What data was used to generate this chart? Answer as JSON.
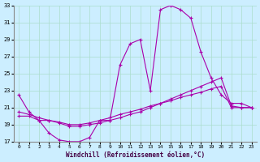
{
  "xlabel": "Windchill (Refroidissement éolien,°C)",
  "ylabel": "",
  "background_color": "#cceeff",
  "grid_color": "#aaddcc",
  "line_color": "#aa00aa",
  "xlim": [
    0,
    23
  ],
  "ylim": [
    17,
    33
  ],
  "yticks": [
    17,
    19,
    21,
    23,
    25,
    27,
    29,
    31,
    33
  ],
  "xticks": [
    0,
    1,
    2,
    3,
    4,
    5,
    6,
    7,
    8,
    9,
    10,
    11,
    12,
    13,
    14,
    15,
    16,
    17,
    18,
    19,
    20,
    21,
    22,
    23
  ],
  "line1_x": [
    0,
    1,
    2,
    3,
    4,
    5,
    6,
    7,
    8,
    9,
    10,
    11,
    12,
    13,
    14,
    15,
    16,
    17,
    18,
    19,
    20,
    21,
    22,
    23
  ],
  "line1_y": [
    22.5,
    20.5,
    19.5,
    18.0,
    17.2,
    17.0,
    17.0,
    17.5,
    19.5,
    19.5,
    26.0,
    28.5,
    29.0,
    23.0,
    32.5,
    33.0,
    32.5,
    31.5,
    27.5,
    24.5,
    22.5,
    21.5,
    21.5,
    21.0
  ],
  "line2_x": [
    0,
    1,
    2,
    3,
    4,
    5,
    6,
    7,
    8,
    9,
    10,
    11,
    12,
    13,
    14,
    15,
    16,
    17,
    18,
    19,
    20,
    21,
    22,
    23
  ],
  "line2_y": [
    20.0,
    20.0,
    19.5,
    19.5,
    19.3,
    19.0,
    19.0,
    19.2,
    19.5,
    19.8,
    20.2,
    20.5,
    20.8,
    21.2,
    21.5,
    21.8,
    22.2,
    22.5,
    22.8,
    23.2,
    23.5,
    21.0,
    21.0,
    21.0
  ],
  "line3_x": [
    0,
    1,
    2,
    3,
    4,
    5,
    6,
    7,
    8,
    9,
    10,
    11,
    12,
    13,
    14,
    15,
    16,
    17,
    18,
    19,
    20,
    21,
    22,
    23
  ],
  "line3_y": [
    20.5,
    20.2,
    19.8,
    19.5,
    19.2,
    18.8,
    18.8,
    19.0,
    19.2,
    19.5,
    19.8,
    20.2,
    20.5,
    21.0,
    21.5,
    22.0,
    22.5,
    23.0,
    23.5,
    24.0,
    24.5,
    21.2,
    21.0,
    21.0
  ]
}
